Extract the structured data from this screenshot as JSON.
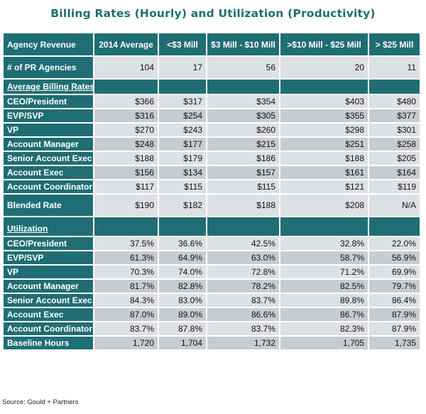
{
  "title": "Billing Rates (Hourly) and Utilization (Productivity)",
  "header": [
    "Agency Revenue",
    "2014 Average",
    "<$3 Mill",
    "$3 Mill - $10 Mill",
    ">$10 Mill - $25 Mill",
    "> $25 Mill"
  ],
  "agencies_row": {
    "label": "# of PR Agencies",
    "values": [
      "104",
      "17",
      "56",
      "20",
      "11"
    ]
  },
  "billing_section": "Average Billing Rates",
  "billing_rows": [
    {
      "label": "CEO/President",
      "values": [
        "$366",
        "$317",
        "$354",
        "$403",
        "$480"
      ]
    },
    {
      "label": "EVP/SVP",
      "values": [
        "$316",
        "$254",
        "$305",
        "$355",
        "$377"
      ]
    },
    {
      "label": "VP",
      "values": [
        "$270",
        "$243",
        "$260",
        "$298",
        "$301"
      ]
    },
    {
      "label": "Account Manager",
      "values": [
        "$248",
        "$177",
        "$215",
        "$251",
        "$258"
      ]
    },
    {
      "label": "Senior Account Exec",
      "values": [
        "$188",
        "$179",
        "$186",
        "$188",
        "$205"
      ]
    },
    {
      "label": "Account Exec",
      "values": [
        "$156",
        "$134",
        "$157",
        "$161",
        "$164"
      ]
    },
    {
      "label": "Account Coordinator",
      "values": [
        "$117",
        "$115",
        "$115",
        "$121",
        "$119"
      ]
    }
  ],
  "blended_row": {
    "label": "Blended Rate",
    "values": [
      "$190",
      "$182",
      "$188",
      "$208",
      "N/A"
    ]
  },
  "utilization_section": "Utilization",
  "utilization_rows": [
    {
      "label": "CEO/President",
      "values": [
        "37.5%",
        "36.6%",
        "42.5%",
        "32.8%",
        "22.0%"
      ]
    },
    {
      "label": "EVP/SVP",
      "values": [
        "61.3%",
        "64.9%",
        "63.0%",
        "58.7%",
        "56.9%"
      ]
    },
    {
      "label": "VP",
      "values": [
        "70.3%",
        "74.0%",
        "72.8%",
        "71.2%",
        "69.9%"
      ]
    },
    {
      "label": "Account Manager",
      "values": [
        "81.7%",
        "82.8%",
        "78.2%",
        "82.5%",
        "79.7%"
      ]
    },
    {
      "label": "Senior Account Exec",
      "values": [
        "84.3%",
        "83.0%",
        "83.7%",
        "89.8%",
        "86.4%"
      ]
    },
    {
      "label": "Account Exec",
      "values": [
        "87.0%",
        "89.0%",
        "86.6%",
        "86.7%",
        "87.9%"
      ]
    },
    {
      "label": "Account Coordinator",
      "values": [
        "83.7%",
        "87.8%",
        "83.7%",
        "82.3%",
        "87.9%"
      ]
    },
    {
      "label": "Baseline Hours",
      "values": [
        "1,720",
        "1,704",
        "1,732",
        "1,705",
        "1,735"
      ]
    }
  ],
  "source": "Source: Gould + Partners",
  "colors": {
    "header_teal": "#1f6e73",
    "cell_light": "#dde0e4",
    "cell_dark": "#c8ccd1"
  }
}
